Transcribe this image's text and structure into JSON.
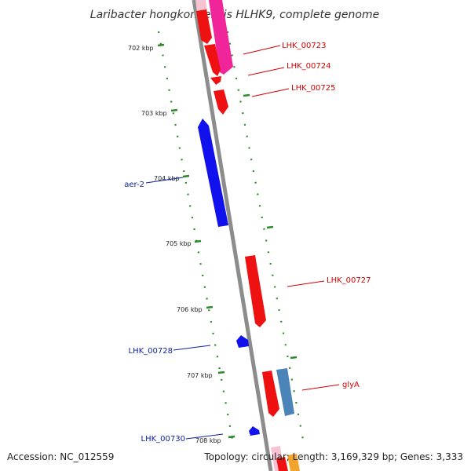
{
  "title": "Laribacter hongkongensis HLHK9, complete genome",
  "footer": {
    "accession": "Accession: NC_012559",
    "topology": "Topology: circular; Length: 3,169,329 bp; Genes: 3,333"
  },
  "colors": {
    "forward_gene": "#ee1111",
    "reverse_gene": "#1111ee",
    "backbone": "#8c8c8c",
    "tick": "#2a8a2a",
    "label_red": "#d40000",
    "label_blue": "#0a1f9a",
    "pink_gene": "#f0259a",
    "steel_gene": "#4b84b8",
    "orange_gene": "#f2a42c",
    "light_pink_gene": "#f7c3d3"
  },
  "scale_labels": [
    "702 kbp",
    "703 kbp",
    "704 kbp",
    "705 kbp",
    "706 kbp",
    "707 kbp",
    "708 kbp"
  ],
  "gene_labels": [
    {
      "text": "LHK_00723",
      "color": "red"
    },
    {
      "text": "LHK_00724",
      "color": "red"
    },
    {
      "text": "LHK_00725",
      "color": "red"
    },
    {
      "text": "aer-2",
      "color": "blue"
    },
    {
      "text": "LHK_00727",
      "color": "red"
    },
    {
      "text": "LHK_00728",
      "color": "blue"
    },
    {
      "text": "glyA",
      "color": "red"
    },
    {
      "text": "LHK_00730",
      "color": "blue"
    }
  ]
}
